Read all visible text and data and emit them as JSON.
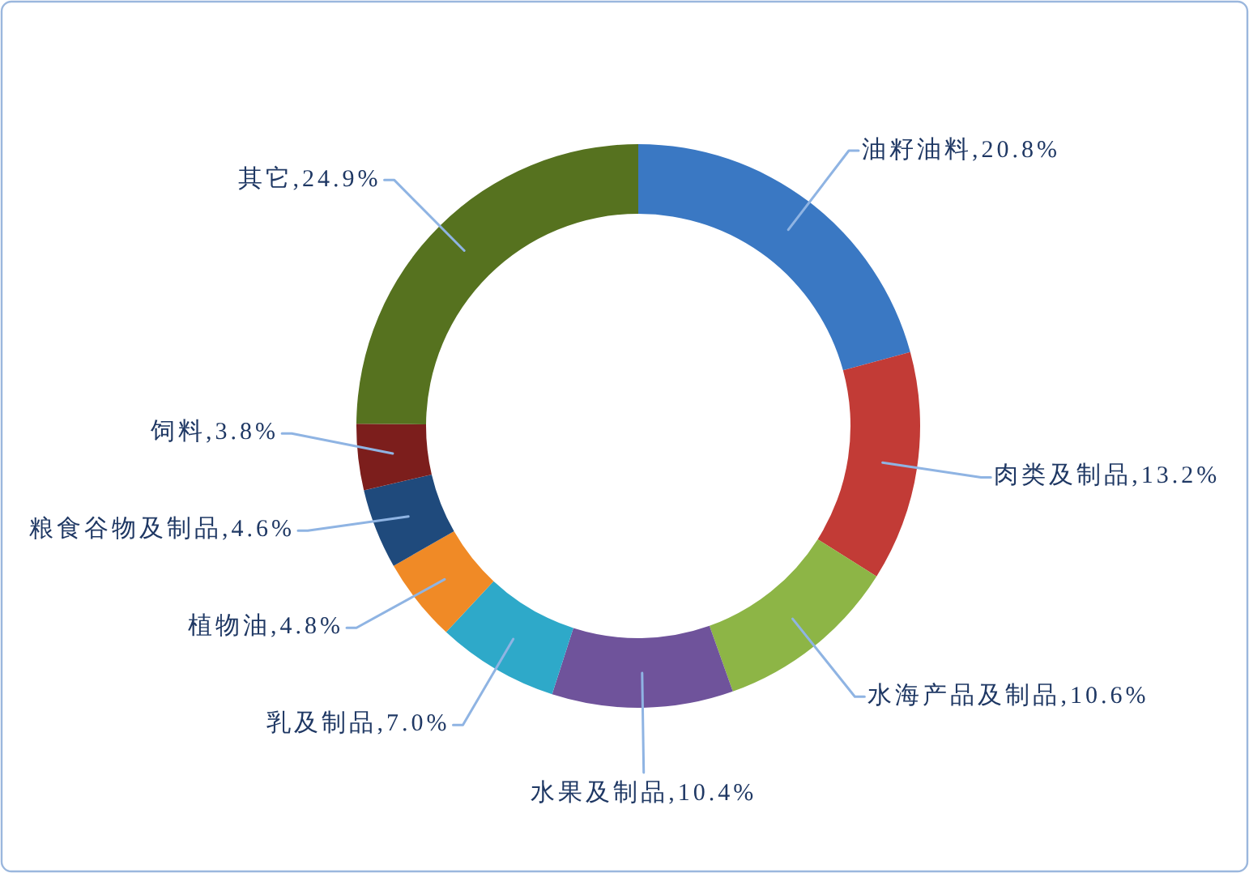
{
  "chart_data": {
    "type": "donut",
    "categories": [
      "油籽油料",
      "肉类及制品",
      "水海产品及制品",
      "水果及制品",
      "乳及制品",
      "植物油",
      "粮食谷物及制品",
      "饲料",
      "其它"
    ],
    "values": [
      20.8,
      13.2,
      10.6,
      10.4,
      7.0,
      4.8,
      4.6,
      3.8,
      24.9
    ],
    "colors": [
      "#3a78c3",
      "#c23b36",
      "#8db546",
      "#6f539b",
      "#2ea9c9",
      "#f08a26",
      "#1f4a7c",
      "#7c1e1c",
      "#56721f"
    ],
    "value_labels": [
      "20.8%",
      "13.2%",
      "10.6%",
      "10.4%",
      "7.0%",
      "4.8%",
      "4.6%",
      "3.8%",
      "24.9%"
    ]
  }
}
